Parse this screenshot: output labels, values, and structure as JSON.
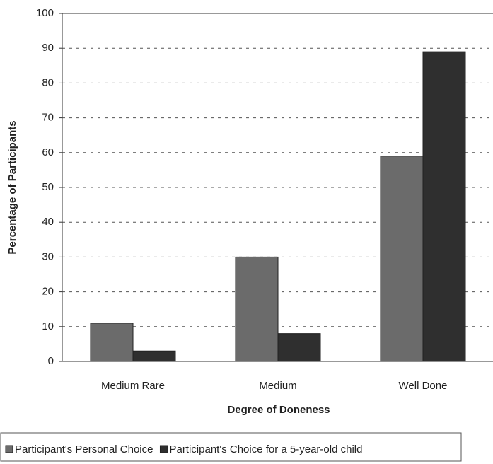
{
  "chart_data": {
    "type": "bar",
    "x_label": "Degree of Doneness",
    "y_label": "Percentage of Participants",
    "categories": [
      "Medium Rare",
      "Medium",
      "Well Done"
    ],
    "series": [
      {
        "name": "Participant's Personal Choice",
        "color": "#6b6b6b",
        "values": [
          11,
          30,
          59
        ]
      },
      {
        "name": "Participant's Choice for a 5-year-old child",
        "color": "#2f2f2f",
        "values": [
          3,
          8,
          89
        ]
      }
    ],
    "ylim": [
      0,
      100
    ],
    "yticks": [
      0,
      10,
      20,
      30,
      40,
      50,
      60,
      70,
      80,
      90,
      100
    ],
    "grid": true,
    "legend": "bottom"
  }
}
